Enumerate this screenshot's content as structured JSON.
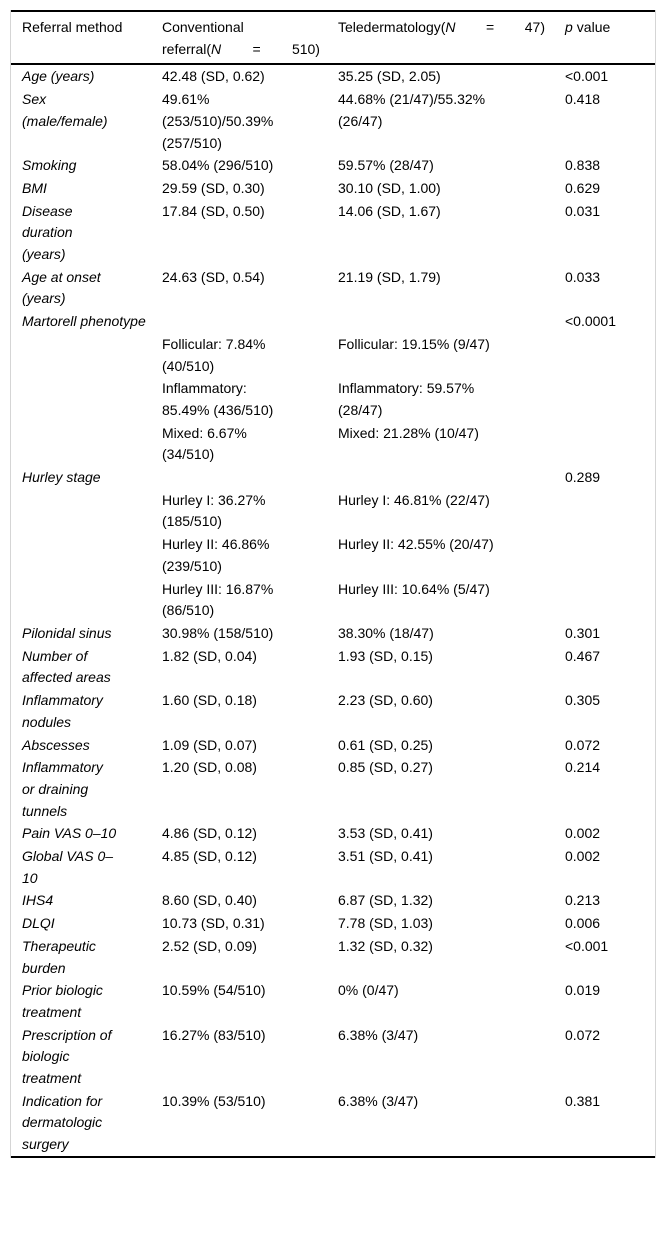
{
  "table": {
    "header": {
      "col1": "Referral method",
      "col2_line1": "Conventional",
      "col2_line2": {
        "prefix": "referral(",
        "n": "N",
        "eq": "=",
        "value": "510)"
      },
      "col3": {
        "prefix": "Teledermatology(",
        "n": "N",
        "eq": "=",
        "value": "47)"
      },
      "col4": {
        "p": "p",
        "rest": "value"
      }
    },
    "rows": [
      {
        "label": "Age (years)",
        "conventional": "42.48 (SD, 0.62)",
        "teledermatology": "35.25 (SD, 2.05)",
        "p": "<0.001"
      },
      {
        "label": "Sex (male/female)",
        "conventional": "49.61% (253/510)/50.39% (257/510)",
        "teledermatology": "44.68% (21/47)/55.32% (26/47)",
        "p": "0.418"
      },
      {
        "label": "Smoking",
        "conventional": "58.04% (296/510)",
        "teledermatology": "59.57% (28/47)",
        "p": "0.838"
      },
      {
        "label": "BMI",
        "conventional": "29.59 (SD, 0.30)",
        "teledermatology": "30.10 (SD, 1.00)",
        "p": "0.629"
      },
      {
        "label": "Disease duration (years)",
        "conventional": "17.84 (SD, 0.50)",
        "teledermatology": "14.06 (SD, 1.67)",
        "p": "0.031"
      },
      {
        "label": "Age at onset (years)",
        "conventional": "24.63 (SD, 0.54)",
        "teledermatology": "21.19 (SD, 1.79)",
        "p": "0.033"
      },
      {
        "label": "Martorell phenotype",
        "conventional": "",
        "teledermatology": "",
        "p": "<0.0001"
      },
      {
        "label": "",
        "conventional": "Follicular: 7.84% (40/510)",
        "teledermatology": "Follicular: 19.15% (9/47)",
        "p": ""
      },
      {
        "label": "",
        "conventional": "Inflammatory: 85.49% (436/510)",
        "teledermatology": "Inflammatory: 59.57% (28/47)",
        "p": ""
      },
      {
        "label": "",
        "conventional": "Mixed: 6.67% (34/510)",
        "teledermatology": "Mixed: 21.28% (10/47)",
        "p": ""
      },
      {
        "label": "Hurley stage",
        "conventional": "",
        "teledermatology": "",
        "p": "0.289"
      },
      {
        "label": "",
        "conventional": "Hurley I: 36.27% (185/510)",
        "teledermatology": "Hurley I: 46.81% (22/47)",
        "p": ""
      },
      {
        "label": "",
        "conventional": "Hurley II: 46.86% (239/510)",
        "teledermatology": "Hurley II: 42.55% (20/47)",
        "p": ""
      },
      {
        "label": "",
        "conventional": "Hurley III: 16.87% (86/510)",
        "teledermatology": "Hurley III: 10.64% (5/47)",
        "p": ""
      },
      {
        "label": "Pilonidal sinus",
        "conventional": "30.98% (158/510)",
        "teledermatology": "38.30% (18/47)",
        "p": "0.301"
      },
      {
        "label": "Number of affected areas",
        "conventional": "1.82 (SD, 0.04)",
        "teledermatology": "1.93 (SD, 0.15)",
        "p": "0.467"
      },
      {
        "label": "Inflammatory nodules",
        "conventional": "1.60 (SD, 0.18)",
        "teledermatology": "2.23 (SD, 0.60)",
        "p": "0.305"
      },
      {
        "label": "Abscesses",
        "conventional": "1.09 (SD, 0.07)",
        "teledermatology": "0.61 (SD, 0.25)",
        "p": "0.072"
      },
      {
        "label": "Inflammatory or draining tunnels",
        "conventional": "1.20 (SD, 0.08)",
        "teledermatology": "0.85 (SD, 0.27)",
        "p": "0.214"
      },
      {
        "label": "Pain VAS 0–10",
        "conventional": "4.86 (SD, 0.12)",
        "teledermatology": "3.53 (SD, 0.41)",
        "p": "0.002"
      },
      {
        "label": "Global VAS 0–10",
        "conventional": "4.85 (SD, 0.12)",
        "teledermatology": "3.51 (SD, 0.41)",
        "p": "0.002"
      },
      {
        "label": "IHS4",
        "conventional": "8.60 (SD, 0.40)",
        "teledermatology": "6.87 (SD, 1.32)",
        "p": "0.213"
      },
      {
        "label": "DLQI",
        "conventional": "10.73 (SD, 0.31)",
        "teledermatology": "7.78 (SD, 1.03)",
        "p": "0.006"
      },
      {
        "label": "Therapeutic burden",
        "conventional": "2.52 (SD, 0.09)",
        "teledermatology": "1.32 (SD, 0.32)",
        "p": "<0.001"
      },
      {
        "label": "Prior biologic treatment",
        "conventional": "10.59% (54/510)",
        "teledermatology": "0% (0/47)",
        "p": "0.019"
      },
      {
        "label": "Prescription of biologic treatment",
        "conventional": "16.27% (83/510)",
        "teledermatology": "6.38% (3/47)",
        "p": "0.072"
      },
      {
        "label": "Indication for dermatologic surgery",
        "conventional": "10.39% (53/510)",
        "teledermatology": "6.38% (3/47)",
        "p": "0.381"
      }
    ]
  }
}
